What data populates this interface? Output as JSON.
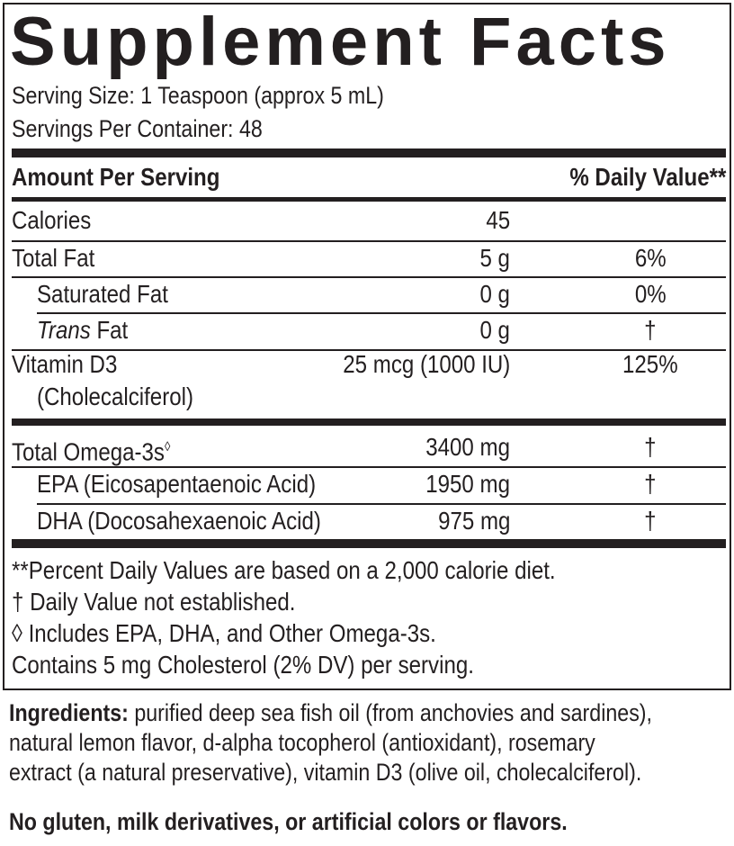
{
  "title": "Supplement Facts",
  "serving_size": "Serving Size: 1 Teaspoon (approx 5 mL)",
  "servings_per_container": "Servings Per Container: 48",
  "header": {
    "amount": "Amount Per Serving",
    "dv": "% Daily Value**"
  },
  "rows": [
    {
      "name": "Calories",
      "amount": "45",
      "dv": ""
    },
    {
      "name": "Total Fat",
      "amount": "5 g",
      "dv": "6%"
    },
    {
      "name": "Saturated Fat",
      "amount": "0 g",
      "dv": "0%"
    },
    {
      "name_italic": "Trans",
      "name": " Fat",
      "amount": "0 g",
      "dv": "†"
    },
    {
      "name": "Vitamin D3",
      "name2": "(Cholecalciferol)",
      "amount": "25 mcg (1000 IU)",
      "dv": "125%"
    }
  ],
  "rows2": [
    {
      "name": "Total Omega-3s",
      "sup": "◊",
      "amount": "3400 mg",
      "dv": "†"
    },
    {
      "name": "EPA (Eicosapentaenoic Acid)",
      "amount": "1950 mg",
      "dv": "†"
    },
    {
      "name": "DHA (Docosahexaenoic Acid)",
      "amount": "975 mg",
      "dv": "†"
    }
  ],
  "footnotes": [
    "**Percent Daily Values are based on a 2,000 calorie diet.",
    "† Daily Value not established.",
    "◊ Includes EPA, DHA, and Other Omega-3s.",
    "Contains 5 mg Cholesterol (2% DV) per serving."
  ],
  "ingredients": {
    "label": "Ingredients:",
    "lines": [
      " purified deep sea fish oil (from anchovies and sardines),",
      "natural lemon flavor, d-alpha tocopherol (antioxidant), rosemary",
      "extract (a natural preservative), vitamin D3 (olive oil, cholecalciferol)."
    ]
  },
  "allergen": "No gluten, milk derivatives, or artificial colors or flavors."
}
